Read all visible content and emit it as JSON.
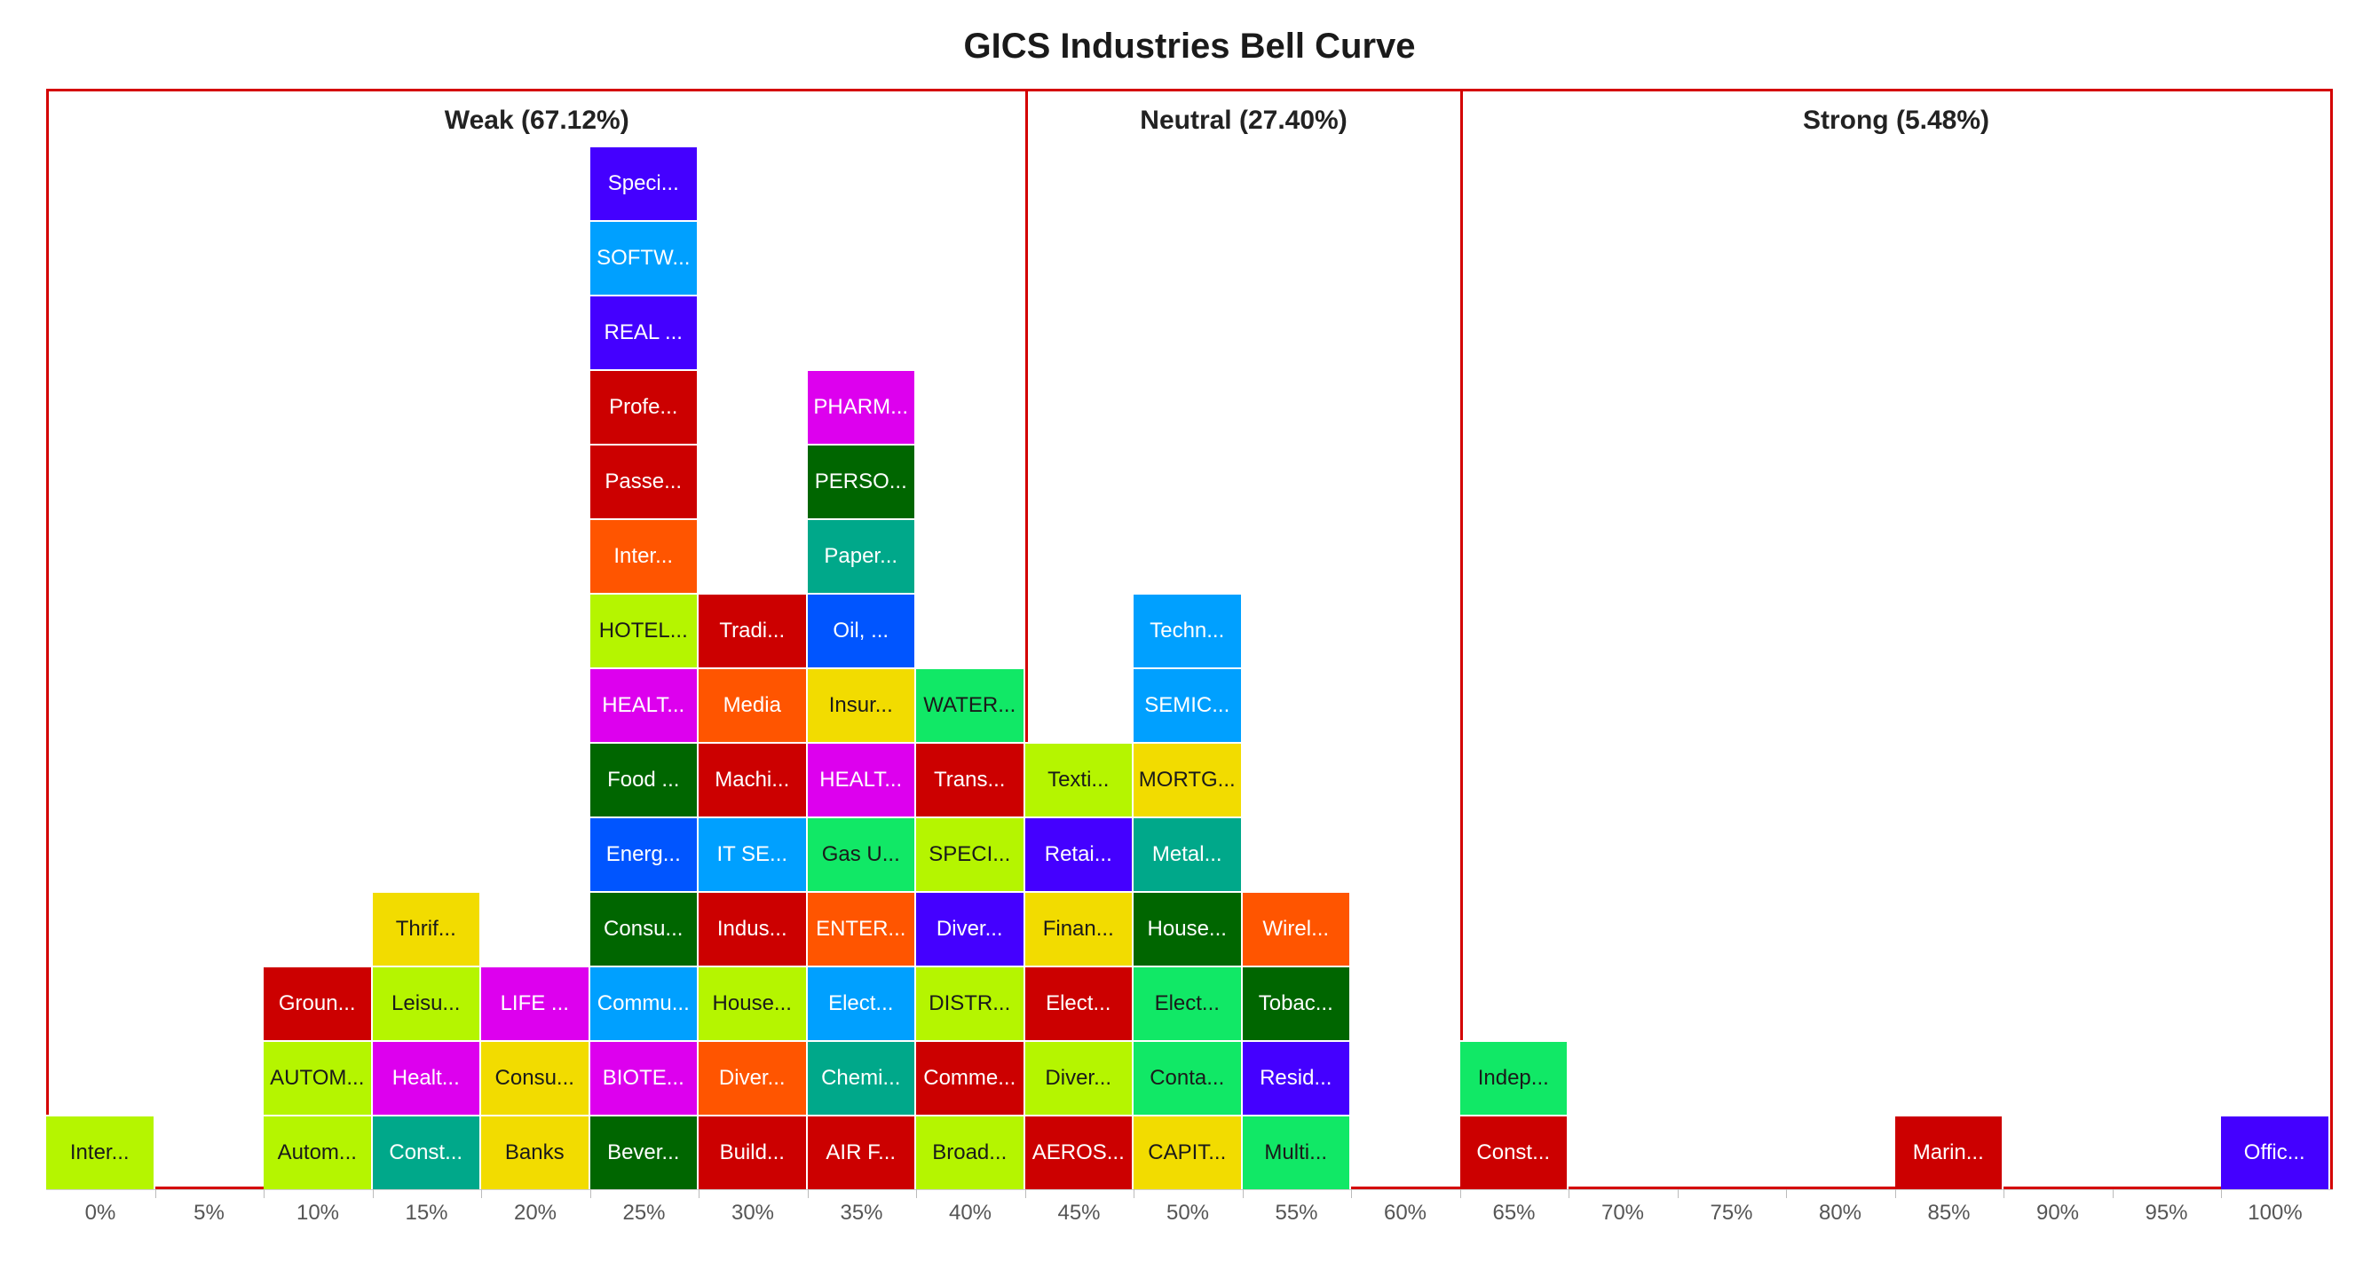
{
  "chart_data": {
    "type": "bar",
    "title": "GICS Industries Bell Curve",
    "zones": [
      {
        "label": "Weak (67.12%)",
        "from_bin": 0,
        "to_bin": 9
      },
      {
        "label": "Neutral (27.40%)",
        "from_bin": 9,
        "to_bin": 13
      },
      {
        "label": "Strong (5.48%)",
        "from_bin": 13,
        "to_bin": 21
      }
    ],
    "categories": [
      "0%",
      "5%",
      "10%",
      "15%",
      "20%",
      "25%",
      "30%",
      "35%",
      "40%",
      "45%",
      "50%",
      "55%",
      "60%",
      "65%",
      "70%",
      "75%",
      "80%",
      "85%",
      "90%",
      "95%",
      "100%"
    ],
    "values": [
      1,
      0,
      3,
      4,
      3,
      14,
      8,
      11,
      7,
      6,
      8,
      4,
      0,
      2,
      0,
      0,
      0,
      1,
      0,
      0,
      1
    ],
    "stacks": [
      [
        {
          "label": "Inter...",
          "color": "#b5f500"
        }
      ],
      [],
      [
        {
          "label": "Autom...",
          "color": "#b5f500"
        },
        {
          "label": "AUTOM...",
          "color": "#b5f500"
        },
        {
          "label": "Groun...",
          "color": "#cc0000"
        }
      ],
      [
        {
          "label": "Const...",
          "color": "#00a88a"
        },
        {
          "label": "Healt...",
          "color": "#dd00ee"
        },
        {
          "label": "Leisu...",
          "color": "#b5f500"
        },
        {
          "label": "Thrif...",
          "color": "#f2dc00"
        }
      ],
      [
        {
          "label": "Banks",
          "color": "#f2dc00"
        },
        {
          "label": "Consu...",
          "color": "#f2dc00"
        },
        {
          "label": "LIFE ...",
          "color": "#dd00ee"
        }
      ],
      [
        {
          "label": "Bever...",
          "color": "#006600"
        },
        {
          "label": "BIOTE...",
          "color": "#dd00ee"
        },
        {
          "label": "Commu...",
          "color": "#00a0ff"
        },
        {
          "label": "Consu...",
          "color": "#006600"
        },
        {
          "label": "Energ...",
          "color": "#0055ff"
        },
        {
          "label": "Food ...",
          "color": "#006600"
        },
        {
          "label": "HEALT...",
          "color": "#dd00ee"
        },
        {
          "label": "HOTEL...",
          "color": "#b5f500"
        },
        {
          "label": "Inter...",
          "color": "#ff5500"
        },
        {
          "label": "Passe...",
          "color": "#cc0000"
        },
        {
          "label": "Profe...",
          "color": "#cc0000"
        },
        {
          "label": "REAL ...",
          "color": "#4400ff"
        },
        {
          "label": "SOFTW...",
          "color": "#00a0ff"
        },
        {
          "label": "Speci...",
          "color": "#4400ff"
        }
      ],
      [
        {
          "label": "Build...",
          "color": "#cc0000"
        },
        {
          "label": "Diver...",
          "color": "#ff5500"
        },
        {
          "label": "House...",
          "color": "#b5f500"
        },
        {
          "label": "Indus...",
          "color": "#cc0000"
        },
        {
          "label": "IT SE...",
          "color": "#00a0ff"
        },
        {
          "label": "Machi...",
          "color": "#cc0000"
        },
        {
          "label": "Media",
          "color": "#ff5500"
        },
        {
          "label": "Tradi...",
          "color": "#cc0000"
        }
      ],
      [
        {
          "label": "AIR F...",
          "color": "#cc0000"
        },
        {
          "label": "Chemi...",
          "color": "#00a88a"
        },
        {
          "label": "Elect...",
          "color": "#00a0ff"
        },
        {
          "label": "ENTER...",
          "color": "#ff5500"
        },
        {
          "label": "Gas U...",
          "color": "#11e866"
        },
        {
          "label": "HEALT...",
          "color": "#dd00ee"
        },
        {
          "label": "Insur...",
          "color": "#f2dc00"
        },
        {
          "label": "Oil, ...",
          "color": "#0055ff"
        },
        {
          "label": "Paper...",
          "color": "#00a88a"
        },
        {
          "label": "PERSO...",
          "color": "#006600"
        },
        {
          "label": "PHARM...",
          "color": "#dd00ee"
        }
      ],
      [
        {
          "label": "Broad...",
          "color": "#b5f500"
        },
        {
          "label": "Comme...",
          "color": "#cc0000"
        },
        {
          "label": "DISTR...",
          "color": "#b5f500"
        },
        {
          "label": "Diver...",
          "color": "#4400ff"
        },
        {
          "label": "SPECI...",
          "color": "#b5f500"
        },
        {
          "label": "Trans...",
          "color": "#cc0000"
        },
        {
          "label": "WATER...",
          "color": "#11e866"
        }
      ],
      [
        {
          "label": "AEROS...",
          "color": "#cc0000"
        },
        {
          "label": "Diver...",
          "color": "#b5f500"
        },
        {
          "label": "Elect...",
          "color": "#cc0000"
        },
        {
          "label": "Finan...",
          "color": "#f2dc00"
        },
        {
          "label": "Retai...",
          "color": "#4400ff"
        },
        {
          "label": "Texti...",
          "color": "#b5f500"
        }
      ],
      [
        {
          "label": "CAPIT...",
          "color": "#f2dc00"
        },
        {
          "label": "Conta...",
          "color": "#11e866"
        },
        {
          "label": "Elect...",
          "color": "#11e866"
        },
        {
          "label": "House...",
          "color": "#006600"
        },
        {
          "label": "Metal...",
          "color": "#00a88a"
        },
        {
          "label": "MORTG...",
          "color": "#f2dc00"
        },
        {
          "label": "SEMIC...",
          "color": "#00a0ff"
        },
        {
          "label": "Techn...",
          "color": "#00a0ff"
        }
      ],
      [
        {
          "label": "Multi...",
          "color": "#11e866"
        },
        {
          "label": "Resid...",
          "color": "#4400ff"
        },
        {
          "label": "Tobac...",
          "color": "#006600"
        },
        {
          "label": "Wirel...",
          "color": "#ff5500"
        }
      ],
      [],
      [
        {
          "label": "Const...",
          "color": "#cc0000"
        },
        {
          "label": "Indep...",
          "color": "#11e866"
        }
      ],
      [],
      [],
      [],
      [
        {
          "label": "Marin...",
          "color": "#cc0000"
        }
      ],
      [],
      [],
      [
        {
          "label": "Offic...",
          "color": "#4400ff"
        }
      ]
    ],
    "dark_text_colors": [
      "#b5f500",
      "#f2dc00",
      "#11e866"
    ]
  }
}
